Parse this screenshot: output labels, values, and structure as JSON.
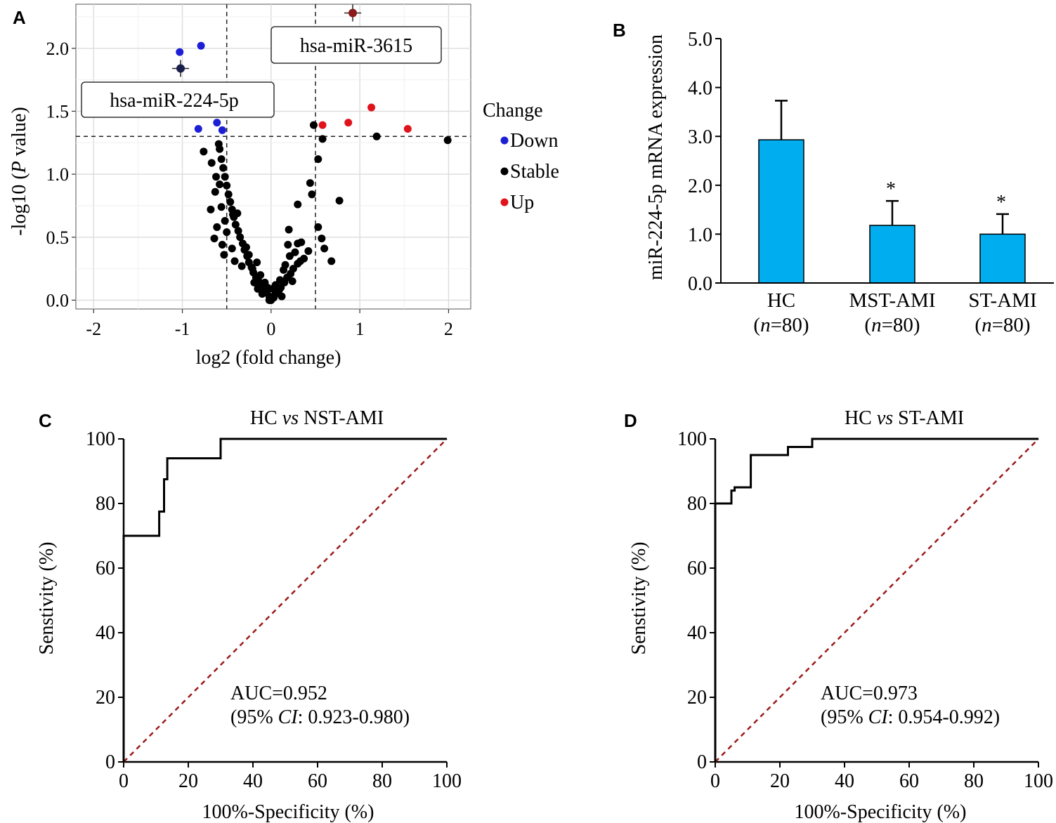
{
  "chart_data": [
    {
      "panel": "A",
      "type": "scatter",
      "xlabel": "log2 (fold change)",
      "ylabel_prefix": "-log10 (",
      "ylabel_italic": "P",
      "ylabel_suffix": " value)",
      "xlim": [
        -2.2,
        2.25
      ],
      "ylim": [
        -0.07,
        2.35
      ],
      "xticks": [
        -2,
        -1,
        0,
        1,
        2
      ],
      "yticks": [
        0.0,
        0.5,
        1.0,
        1.5,
        2.0
      ],
      "xtick_labels": [
        "-2",
        "-1",
        "0",
        "1",
        "2"
      ],
      "ytick_labels": [
        "0.0",
        "0.5",
        "1.0",
        "1.5",
        "2.0"
      ],
      "grid": true,
      "thresholds": {
        "fold_change": [
          -0.5,
          0.5
        ],
        "p_log10": 1.3
      },
      "legend": {
        "title": "Change",
        "placement": "right",
        "entries": [
          "Down",
          "Stable",
          "Up"
        ]
      },
      "colors": {
        "Down": "#1c1fd4",
        "Stable": "#000000",
        "Up": "#e0121b",
        "highlight_down": "#1a1f4a",
        "highlight_up": "#8b1a1a"
      },
      "annotations": [
        {
          "text": "hsa-miR-3615",
          "x": 0.92,
          "y": 2.28
        },
        {
          "text": "hsa-miR-224-5p",
          "x": -1.02,
          "y": 1.84
        }
      ],
      "series": [
        {
          "name": "Down",
          "points": [
            [
              -1.03,
              1.97
            ],
            [
              -0.79,
              2.02
            ],
            [
              -0.82,
              1.36
            ],
            [
              -0.61,
              1.41
            ],
            [
              -0.55,
              1.35
            ],
            [
              -1.02,
              1.84
            ]
          ]
        },
        {
          "name": "Up",
          "points": [
            [
              0.58,
              1.39
            ],
            [
              0.87,
              1.41
            ],
            [
              1.13,
              1.53
            ],
            [
              1.54,
              1.36
            ],
            [
              0.92,
              2.28
            ]
          ]
        },
        {
          "name": "Stable",
          "points": [
            [
              1.19,
              1.3
            ],
            [
              1.99,
              1.27
            ],
            [
              0.48,
              1.39
            ],
            [
              0.58,
              1.28
            ],
            [
              0.53,
              1.12
            ],
            [
              0.44,
              0.93
            ],
            [
              0.46,
              0.84
            ],
            [
              0.77,
              0.79
            ],
            [
              0.3,
              0.76
            ],
            [
              0.53,
              0.58
            ],
            [
              0.57,
              0.49
            ],
            [
              0.68,
              0.31
            ],
            [
              0.6,
              0.41
            ],
            [
              0.2,
              0.56
            ],
            [
              0.3,
              0.45
            ],
            [
              0.34,
              0.46
            ],
            [
              0.42,
              0.39
            ],
            [
              0.37,
              0.33
            ],
            [
              0.33,
              0.31
            ],
            [
              0.3,
              0.29
            ],
            [
              0.25,
              0.25
            ],
            [
              0.22,
              0.21
            ],
            [
              0.18,
              0.18
            ],
            [
              0.15,
              0.14
            ],
            [
              0.11,
              0.1
            ],
            [
              0.08,
              0.07
            ],
            [
              0.05,
              0.05
            ],
            [
              0.03,
              0.02
            ],
            [
              0.0,
              0.0
            ],
            [
              -0.02,
              0.03
            ],
            [
              -0.05,
              0.06
            ],
            [
              -0.08,
              0.09
            ],
            [
              -0.11,
              0.12
            ],
            [
              -0.14,
              0.15
            ],
            [
              -0.17,
              0.18
            ],
            [
              -0.2,
              0.22
            ],
            [
              -0.22,
              0.26
            ],
            [
              -0.25,
              0.3
            ],
            [
              -0.27,
              0.35
            ],
            [
              -0.3,
              0.4
            ],
            [
              -0.32,
              0.45
            ],
            [
              -0.35,
              0.5
            ],
            [
              -0.37,
              0.55
            ],
            [
              -0.4,
              0.6
            ],
            [
              -0.42,
              0.66
            ],
            [
              -0.44,
              0.72
            ],
            [
              -0.46,
              0.78
            ],
            [
              -0.48,
              0.84
            ],
            [
              -0.5,
              0.91
            ],
            [
              -0.52,
              0.98
            ],
            [
              -0.54,
              1.05
            ],
            [
              -0.56,
              1.12
            ],
            [
              -0.58,
              1.2
            ],
            [
              -0.59,
              1.24
            ],
            [
              -0.76,
              1.18
            ],
            [
              -0.67,
              1.09
            ],
            [
              -0.62,
              0.98
            ],
            [
              -0.58,
              0.92
            ],
            [
              -0.63,
              0.86
            ],
            [
              -0.68,
              0.72
            ],
            [
              -0.56,
              0.74
            ],
            [
              -0.43,
              0.68
            ],
            [
              -0.38,
              0.69
            ],
            [
              -0.52,
              0.63
            ],
            [
              -0.61,
              0.58
            ],
            [
              -0.64,
              0.49
            ],
            [
              -0.5,
              0.54
            ],
            [
              -0.55,
              0.44
            ],
            [
              -0.53,
              0.36
            ],
            [
              -0.44,
              0.41
            ],
            [
              -0.41,
              0.31
            ],
            [
              -0.33,
              0.27
            ],
            [
              -0.25,
              0.36
            ],
            [
              -0.16,
              0.3
            ],
            [
              -0.12,
              0.2
            ],
            [
              -0.07,
              0.14
            ],
            [
              0.05,
              0.12
            ],
            [
              0.1,
              0.16
            ],
            [
              0.14,
              0.24
            ],
            [
              0.09,
              0.08
            ],
            [
              0.21,
              0.35
            ],
            [
              0.27,
              0.38
            ],
            [
              0.19,
              0.44
            ],
            [
              0.16,
              0.28
            ],
            [
              -0.28,
              0.42
            ],
            [
              -0.21,
              0.25
            ],
            [
              -0.1,
              0.05
            ],
            [
              -0.04,
              0.1
            ],
            [
              0.02,
              0.09
            ],
            [
              0.12,
              0.03
            ],
            [
              0.24,
              0.15
            ],
            [
              -0.15,
              0.09
            ],
            [
              -0.19,
              0.14
            ],
            [
              -0.02,
              0.0
            ]
          ]
        }
      ]
    },
    {
      "panel": "B",
      "type": "bar",
      "ylabel": "miR-224-5p mRNA expression",
      "ylim": [
        0,
        5.0
      ],
      "yticks": [
        0.0,
        1.0,
        2.0,
        3.0,
        4.0,
        5.0
      ],
      "ytick_labels": [
        "0.0",
        "1.0",
        "2.0",
        "3.0",
        "4.0",
        "5.0"
      ],
      "categories": [
        "HC",
        "MST-AMI",
        "ST-AMI"
      ],
      "n_labels": [
        "=80)",
        "=80)",
        "=80)"
      ],
      "values": [
        2.93,
        1.18,
        1.0
      ],
      "errors": [
        0.8,
        0.5,
        0.41
      ],
      "significance": [
        "",
        "*",
        "*"
      ],
      "bar_color": "#00adef"
    },
    {
      "panel": "C",
      "type": "line",
      "title_a": "HC ",
      "title_vs": "vs",
      "title_b": " NST-AMI",
      "xlabel": "100%-Specificity (%)",
      "ylabel": "Senstivity (%)",
      "xlim": [
        0,
        100
      ],
      "ylim": [
        0,
        100
      ],
      "ticks": [
        0,
        20,
        40,
        60,
        80,
        100
      ],
      "auc": "AUC=0.952",
      "ci_prefix": "(95% ",
      "ci_italic": "CI",
      "ci_suffix": ": 0.923-0.980)",
      "roc": [
        [
          0,
          0
        ],
        [
          0,
          70
        ],
        [
          11,
          70
        ],
        [
          11,
          77.5
        ],
        [
          12.5,
          77.5
        ],
        [
          12.5,
          87.5
        ],
        [
          13.5,
          87.5
        ],
        [
          13.5,
          94
        ],
        [
          30,
          94
        ],
        [
          30,
          100
        ],
        [
          100,
          100
        ]
      ],
      "reference": [
        [
          0,
          0
        ],
        [
          100,
          100
        ]
      ],
      "reference_color": "#9b1a1a"
    },
    {
      "panel": "D",
      "type": "line",
      "title_a": "HC ",
      "title_vs": "vs",
      "title_b": " ST-AMI",
      "xlabel": "100%-Specificity (%)",
      "ylabel": "Senstivity (%)",
      "xlim": [
        0,
        100
      ],
      "ylim": [
        0,
        100
      ],
      "ticks": [
        0,
        20,
        40,
        60,
        80,
        100
      ],
      "auc": "AUC=0.973",
      "ci_prefix": "(95% ",
      "ci_italic": "CI",
      "ci_suffix": ": 0.954-0.992)",
      "roc": [
        [
          0,
          0
        ],
        [
          0,
          80
        ],
        [
          5,
          80
        ],
        [
          5,
          84
        ],
        [
          6,
          84
        ],
        [
          6,
          85
        ],
        [
          11,
          85
        ],
        [
          11,
          95
        ],
        [
          22.5,
          95
        ],
        [
          22.5,
          97.5
        ],
        [
          30,
          97.5
        ],
        [
          30,
          100
        ],
        [
          100,
          100
        ]
      ],
      "reference": [
        [
          0,
          0
        ],
        [
          100,
          100
        ]
      ],
      "reference_color": "#9b1a1a"
    }
  ],
  "panel_labels": [
    "A",
    "B",
    "C",
    "D"
  ],
  "n_italic": "n",
  "n_open": "("
}
